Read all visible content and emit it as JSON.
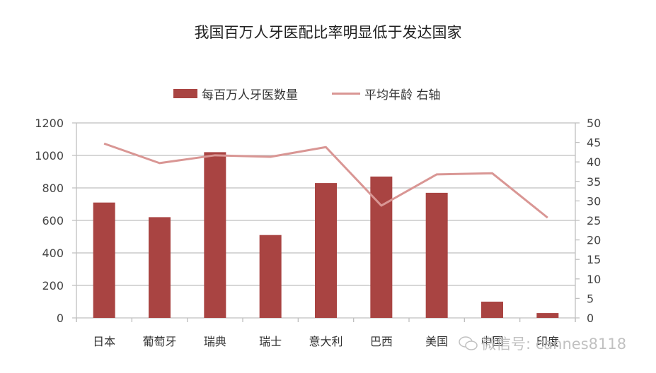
{
  "chart_data": {
    "type": "bar",
    "title": "我国百万人牙医配比率明显低于发达国家",
    "categories": [
      "日本",
      "葡萄牙",
      "瑞典",
      "瑞士",
      "意大利",
      "巴西",
      "美国",
      "中国",
      "印度"
    ],
    "series": [
      {
        "name": "每百万人牙医数量",
        "type": "bar",
        "axis": "left",
        "color": "#A94442",
        "values": [
          710,
          620,
          1020,
          510,
          830,
          870,
          770,
          100,
          30
        ]
      },
      {
        "name": "平均年龄 右轴",
        "type": "line",
        "axis": "right",
        "color": "#D99694",
        "values": [
          44.7,
          39.7,
          41.7,
          41.3,
          43.8,
          28.8,
          36.8,
          37.1,
          25.7
        ]
      }
    ],
    "xlabel": "",
    "ylabel": "",
    "ylim": [
      0,
      1200
    ],
    "yticks": [
      0,
      200,
      400,
      600,
      800,
      1000,
      1200
    ],
    "y2lim": [
      0,
      50
    ],
    "y2ticks": [
      0,
      5,
      10,
      15,
      20,
      25,
      30,
      35,
      40,
      45,
      50
    ],
    "grid": true,
    "legend_position": "top"
  },
  "legend": {
    "bar_label": "每百万人牙医数量",
    "line_label": "平均年龄 右轴"
  },
  "watermark": {
    "text": "微信号: cannes8118"
  }
}
